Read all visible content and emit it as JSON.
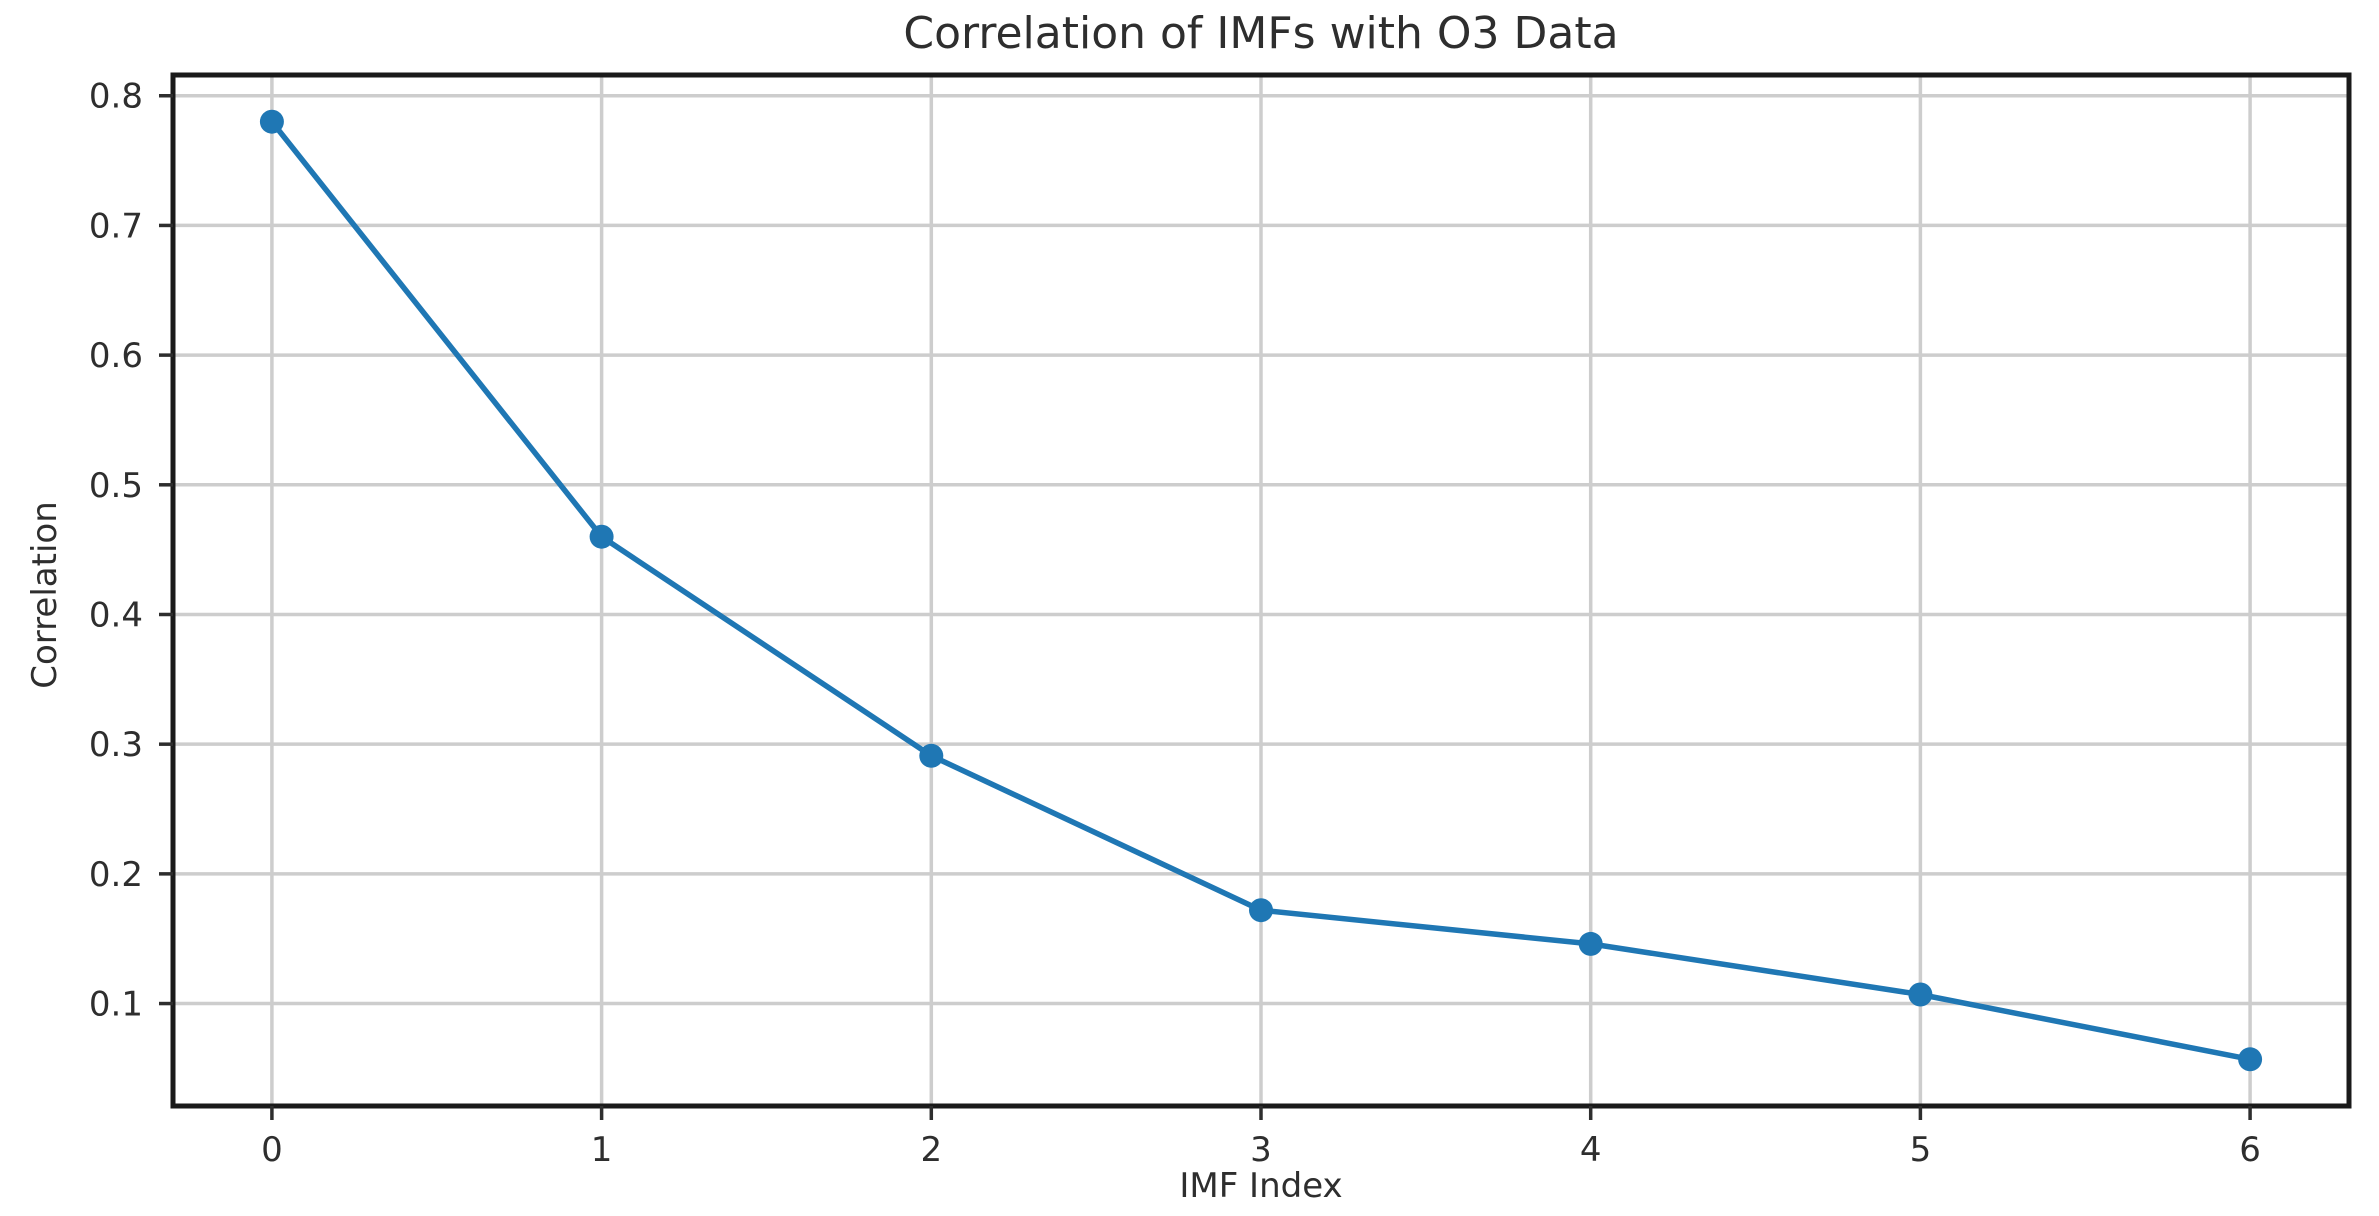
{
  "figure": {
    "background": "#ffffff"
  },
  "chart_data": {
    "type": "line",
    "title": "Correlation of IMFs with O3 Data",
    "xlabel": "IMF Index",
    "ylabel": "Correlation",
    "x": [
      0,
      1,
      2,
      3,
      4,
      5,
      6
    ],
    "y": [
      0.78,
      0.46,
      0.291,
      0.172,
      0.146,
      0.107,
      0.057
    ],
    "x_ticks": {
      "values": [
        0,
        1,
        2,
        3,
        4,
        5,
        6
      ],
      "labels": [
        "0",
        "1",
        "2",
        "3",
        "4",
        "5",
        "6"
      ]
    },
    "y_ticks": {
      "values": [
        0.1,
        0.2,
        0.3,
        0.4,
        0.5,
        0.6,
        0.7,
        0.8
      ],
      "labels": [
        "0.1",
        "0.2",
        "0.3",
        "0.4",
        "0.5",
        "0.6",
        "0.7",
        "0.8"
      ]
    },
    "xlim": [
      -0.3,
      6.3
    ],
    "ylim": [
      0.021,
      0.816
    ],
    "grid": true,
    "legend_position": "none",
    "marker": "o",
    "colors": {
      "line": "#1f77b4",
      "marker": "#1f77b4",
      "grid": "#cdcdcd",
      "spine": "#1a1a1a",
      "tick": "#2e2e2e",
      "text": "#2e2e2e"
    }
  }
}
